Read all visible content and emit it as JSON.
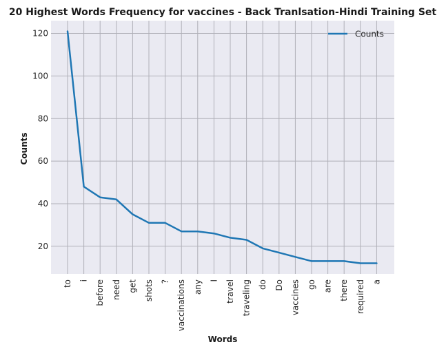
{
  "chart_data": {
    "type": "line",
    "title": "20 Highest Words Frequency for vaccines - Back Tranlsation-Hindi Training Set",
    "xlabel": "Words",
    "ylabel": "Counts",
    "categories": [
      "to",
      "i",
      "before",
      "need",
      "get",
      "shots",
      "?",
      "vaccinations",
      "any",
      "I",
      "travel",
      "traveling",
      "do",
      "Do",
      "vaccines",
      "go",
      "are",
      "there",
      "required",
      "a"
    ],
    "series": [
      {
        "name": "Counts",
        "values": [
          121,
          48,
          43,
          42,
          35,
          31,
          31,
          27,
          27,
          26,
          24,
          23,
          19,
          17,
          15,
          13,
          13,
          13,
          12,
          12
        ],
        "color": "#1f77b4"
      }
    ],
    "ylim": [
      7,
      126
    ],
    "yticks": [
      20,
      40,
      60,
      80,
      100,
      120
    ],
    "grid": true,
    "legend_position": "top-right",
    "background_color": "#eaeaf2",
    "grid_color": "#b0b0b8"
  }
}
